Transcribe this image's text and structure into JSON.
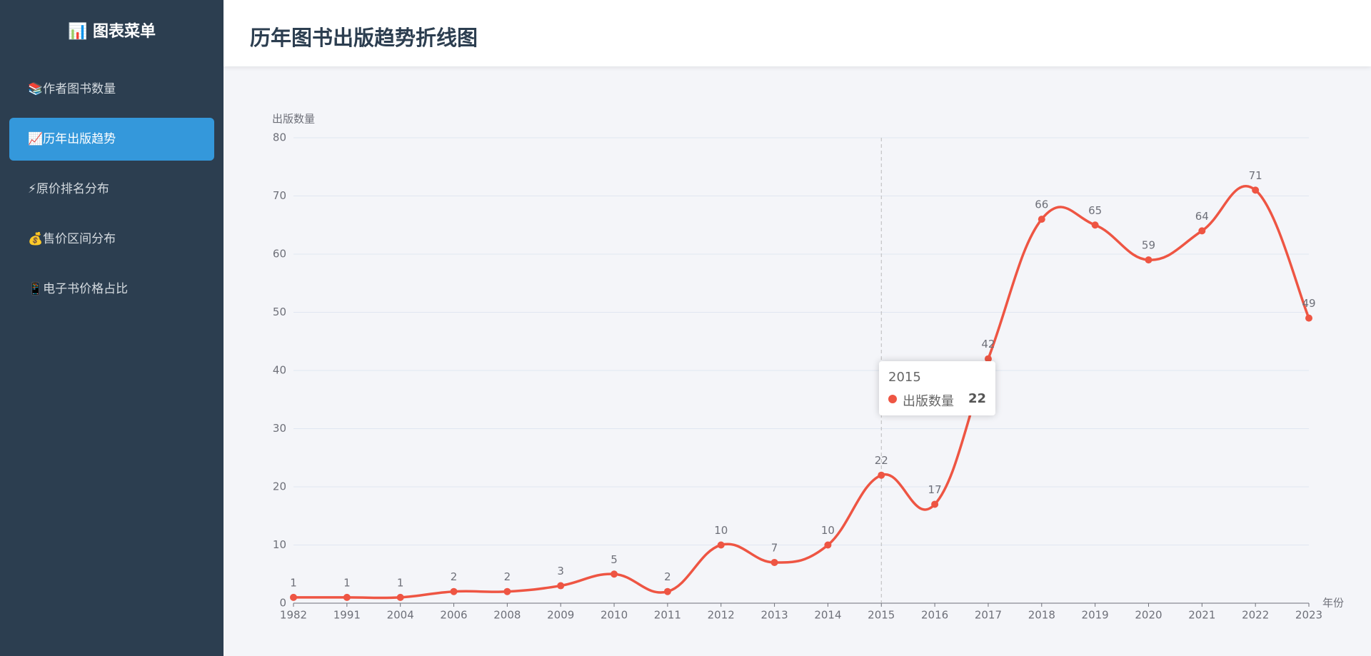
{
  "sidebar": {
    "title": "📊 图表菜单",
    "items": [
      "📚作者图书数量",
      "📈历年出版趋势",
      "⚡原价排名分布",
      "💰售价区间分布",
      "📱电子书价格占比"
    ],
    "active": 1
  },
  "header": {
    "title": "历年图书出版趋势折线图"
  },
  "chart_data": {
    "type": "line",
    "y_label": "出版数量",
    "x_label": "年份",
    "categories": [
      "1982",
      "1991",
      "2004",
      "2006",
      "2008",
      "2009",
      "2010",
      "2011",
      "2012",
      "2013",
      "2014",
      "2015",
      "2016",
      "2017",
      "2018",
      "2019",
      "2020",
      "2021",
      "2022",
      "2023"
    ],
    "series": [
      {
        "name": "出版数量",
        "color": "#ee5543",
        "values": [
          1,
          1,
          1,
          2,
          2,
          3,
          5,
          2,
          10,
          7,
          10,
          22,
          17,
          42,
          66,
          65,
          59,
          64,
          71,
          49
        ]
      }
    ],
    "ylim": [
      0,
      80
    ],
    "yticks": [
      0,
      10,
      20,
      30,
      40,
      50,
      60,
      70,
      80
    ],
    "grid": true,
    "tooltip": {
      "index": 11
    }
  }
}
